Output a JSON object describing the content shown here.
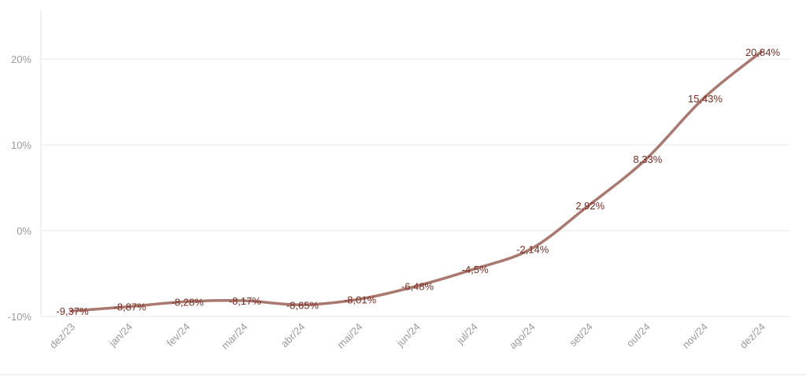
{
  "chart_data": {
    "type": "line",
    "title": "",
    "xlabel": "",
    "ylabel": "",
    "categories": [
      "dez/23",
      "jan/24",
      "fev/24",
      "mar/24",
      "abr/24",
      "mai/24",
      "jun/24",
      "jul/24",
      "ago/24",
      "set/24",
      "out/24",
      "nov/24",
      "dez/24"
    ],
    "series": [
      {
        "values": [
          -9.37,
          -8.87,
          -8.28,
          -8.17,
          -8.65,
          -8.01,
          -6.48,
          -4.5,
          -2.14,
          2.92,
          8.33,
          15.43,
          20.84
        ],
        "labels": [
          "-9,37%",
          "-8,87%",
          "-8,28%",
          "-8,17%",
          "-8,65%",
          "-8,01%",
          "-6,48%",
          "-4,5%",
          "-2,14%",
          "2,92%",
          "8,33%",
          "15,43%",
          "20,84%"
        ]
      }
    ],
    "ylim": [
      -10,
      25
    ],
    "yticks": [
      -10,
      0,
      10,
      20
    ],
    "ytick_labels": [
      "-10%",
      "0%",
      "10%",
      "20%"
    ],
    "grid": true,
    "legend": "none",
    "colors": {
      "line": "#a9786f",
      "label": "#7a2a22",
      "grid": "#e6e6e6",
      "tick": "#9a9a9a"
    }
  }
}
